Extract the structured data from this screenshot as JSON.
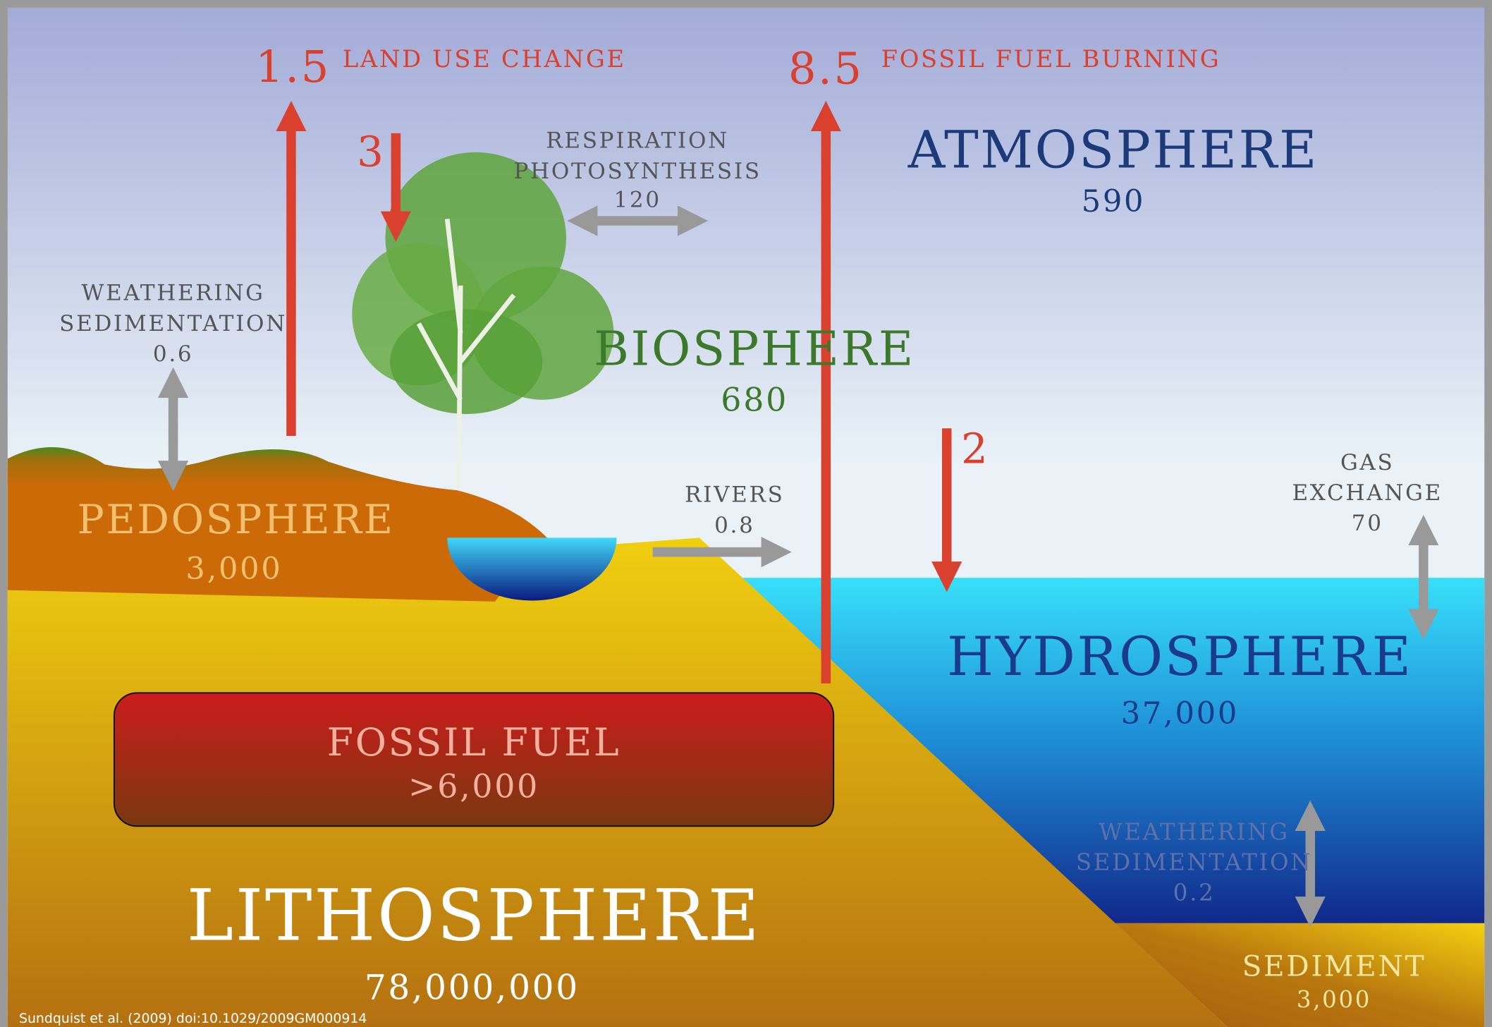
{
  "citation": "Sundquist et al. (2009) doi:10.1029/2009GM000914",
  "reservoirs": {
    "atmosphere": {
      "name": "ATMOSPHERE",
      "amount": "590"
    },
    "biosphere": {
      "name": "BIOSPHERE",
      "amount": "680"
    },
    "pedosphere": {
      "name": "PEDOSPHERE",
      "amount": "3,000"
    },
    "hydrosphere": {
      "name": "HYDROSPHERE",
      "amount": "37,000"
    },
    "fossil_fuel": {
      "name": "FOSSIL FUEL",
      "amount": ">6,000"
    },
    "lithosphere": {
      "name": "LITHOSPHERE",
      "amount": "78,000,000"
    },
    "sediment": {
      "name": "SEDIMENT",
      "amount": "3,000"
    }
  },
  "fluxes": {
    "land_use_change": {
      "amount": "1.5",
      "label": "LAND USE CHANGE"
    },
    "fossil_fuel_burning": {
      "amount": "8.5",
      "label": "FOSSIL FUEL BURNING"
    },
    "land_uptake": {
      "amount": "3"
    },
    "respiration": {
      "lines": [
        "RESPIRATION",
        "PHOTOSYNTHESIS"
      ],
      "amount": "120"
    },
    "land_weathering": {
      "lines": [
        "WEATHERING",
        "SEDIMENTATION"
      ],
      "amount": "0.6"
    },
    "rivers": {
      "lines": [
        "RIVERS"
      ],
      "amount": "0.8"
    },
    "ocean_uptake": {
      "amount": "2"
    },
    "gas_exchange": {
      "lines": [
        "GAS",
        "EXCHANGE"
      ],
      "amount": "70"
    },
    "ocean_weathering": {
      "lines": [
        "WEATHERING",
        "SEDIMENTATION"
      ],
      "amount": "0.2"
    }
  }
}
